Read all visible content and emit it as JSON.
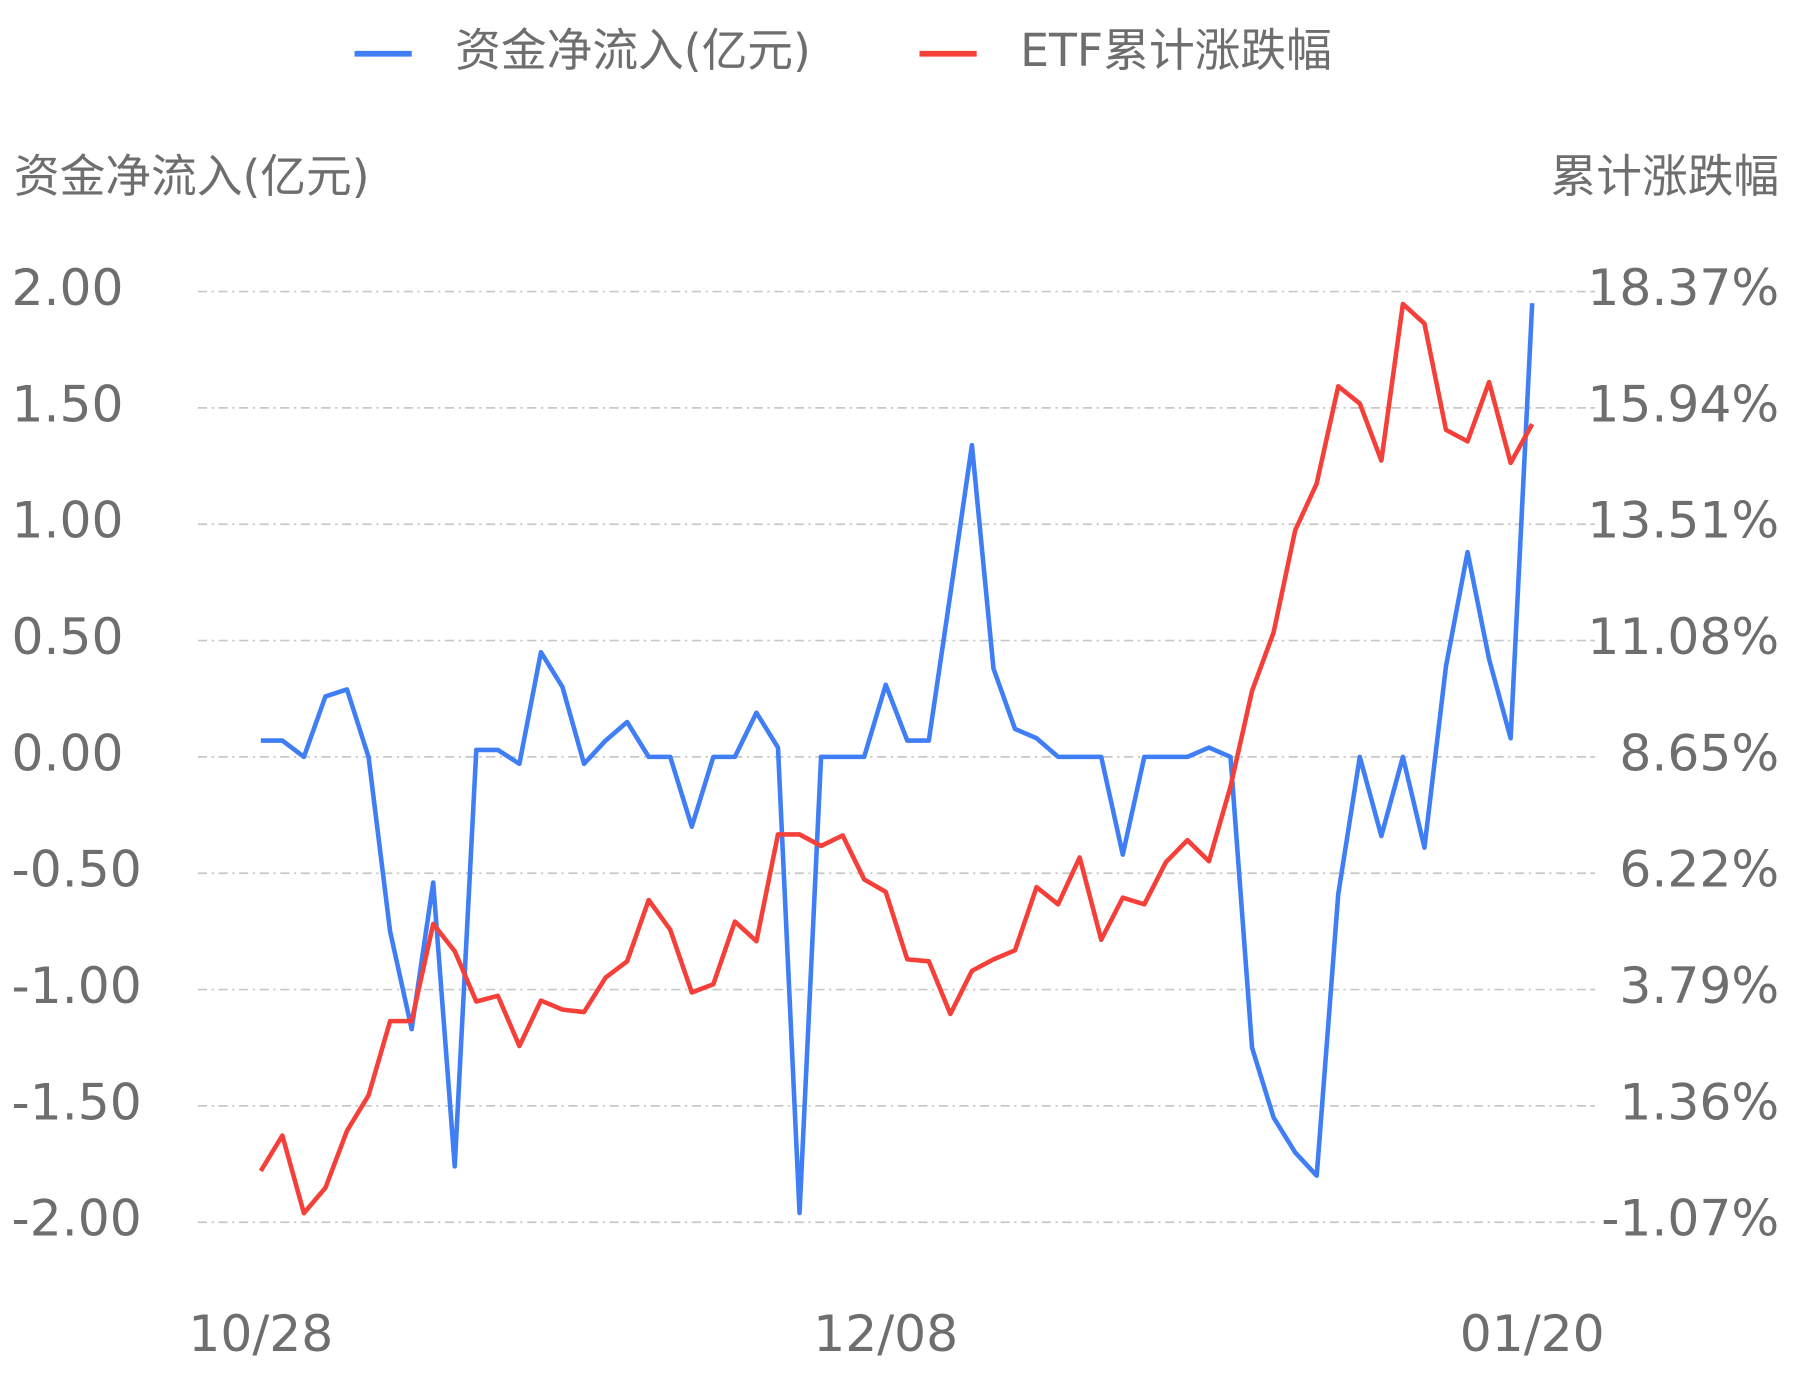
{
  "chart_data": {
    "type": "line",
    "y_label": "资金净流入(亿元)",
    "y2_label": "累计涨跌幅",
    "categories": [
      "10/28",
      null,
      null,
      null,
      null,
      null,
      null,
      null,
      null,
      null,
      null,
      null,
      null,
      null,
      null,
      null,
      null,
      null,
      null,
      null,
      null,
      null,
      null,
      null,
      null,
      null,
      null,
      null,
      null,
      "12/08",
      null,
      null,
      null,
      null,
      null,
      null,
      null,
      null,
      null,
      null,
      null,
      null,
      null,
      null,
      null,
      null,
      null,
      null,
      null,
      null,
      null,
      null,
      null,
      null,
      null,
      null,
      null,
      null,
      null,
      "01/20"
    ],
    "series": [
      {
        "name": "资金净流入(亿元)",
        "color": "#3f7ef5",
        "axis": "y",
        "values": [
          0.07,
          0.07,
          0,
          0.26,
          0.29,
          0,
          -0.75,
          -1.17,
          -0.54,
          -1.76,
          0.03,
          0.03,
          -0.03,
          0.45,
          0.3,
          -0.03,
          0.07,
          0.15,
          0,
          0,
          -0.3,
          0,
          0,
          0.19,
          0.04,
          -1.96,
          0,
          0,
          0,
          0.31,
          0.07,
          0.07,
          0.7,
          1.34,
          0.38,
          0.12,
          0.08,
          0,
          0,
          0,
          -0.42,
          0,
          0,
          0,
          0.04,
          0,
          -1.25,
          -1.55,
          -1.7,
          -1.8,
          -0.59,
          0,
          -0.34,
          0,
          -0.39,
          0.39,
          0.88,
          0.42,
          0.08,
          1.95
        ]
      },
      {
        "name": "ETF累计涨跌幅",
        "color": "#f5403a",
        "axis": "y2",
        "values": [
          0,
          0.74,
          -0.88,
          -0.35,
          0.84,
          1.58,
          3.13,
          3.13,
          5.16,
          4.59,
          3.54,
          3.66,
          2.61,
          3.56,
          3.37,
          3.32,
          4.04,
          4.38,
          5.66,
          5.04,
          3.73,
          3.9,
          5.21,
          4.8,
          7.03,
          7.03,
          6.79,
          7.01,
          6.09,
          5.83,
          4.42,
          4.38,
          3.28,
          4.18,
          4.42,
          4.61,
          5.93,
          5.57,
          6.55,
          4.83,
          5.71,
          5.57,
          6.45,
          6.91,
          6.47,
          8.03,
          10.03,
          11.25,
          13.38,
          14.36,
          16.39,
          16.03,
          14.84,
          18.11,
          17.7,
          15.48,
          15.24,
          16.48,
          14.79,
          15.6
        ]
      }
    ],
    "ylim": [
      -2,
      2
    ],
    "yticks": [
      {
        "value": 2,
        "label": "2.00"
      },
      {
        "value": 1.5,
        "label": "1.50"
      },
      {
        "value": 1,
        "label": "1.00"
      },
      {
        "value": 0.5,
        "label": "0.50"
      },
      {
        "value": 0,
        "label": "0.00"
      },
      {
        "value": -0.5,
        "label": "-0.50"
      },
      {
        "value": -1,
        "label": "-1.00"
      },
      {
        "value": -1.5,
        "label": "-1.50"
      },
      {
        "value": -2,
        "label": "-2.00"
      }
    ],
    "y2lim": [
      -1.07,
      18.37
    ],
    "y2ticks": [
      {
        "value": 18.37,
        "label": "18.37%"
      },
      {
        "value": 15.94,
        "label": "15.94%"
      },
      {
        "value": 13.51,
        "label": "13.51%"
      },
      {
        "value": 11.08,
        "label": "11.08%"
      },
      {
        "value": 8.65,
        "label": "8.65%"
      },
      {
        "value": 6.22,
        "label": "6.22%"
      },
      {
        "value": 3.79,
        "label": "3.79%"
      },
      {
        "value": 1.36,
        "label": "1.36%"
      },
      {
        "value": -1.07,
        "label": "-1.07%"
      }
    ],
    "grid": true,
    "legend": "top"
  }
}
